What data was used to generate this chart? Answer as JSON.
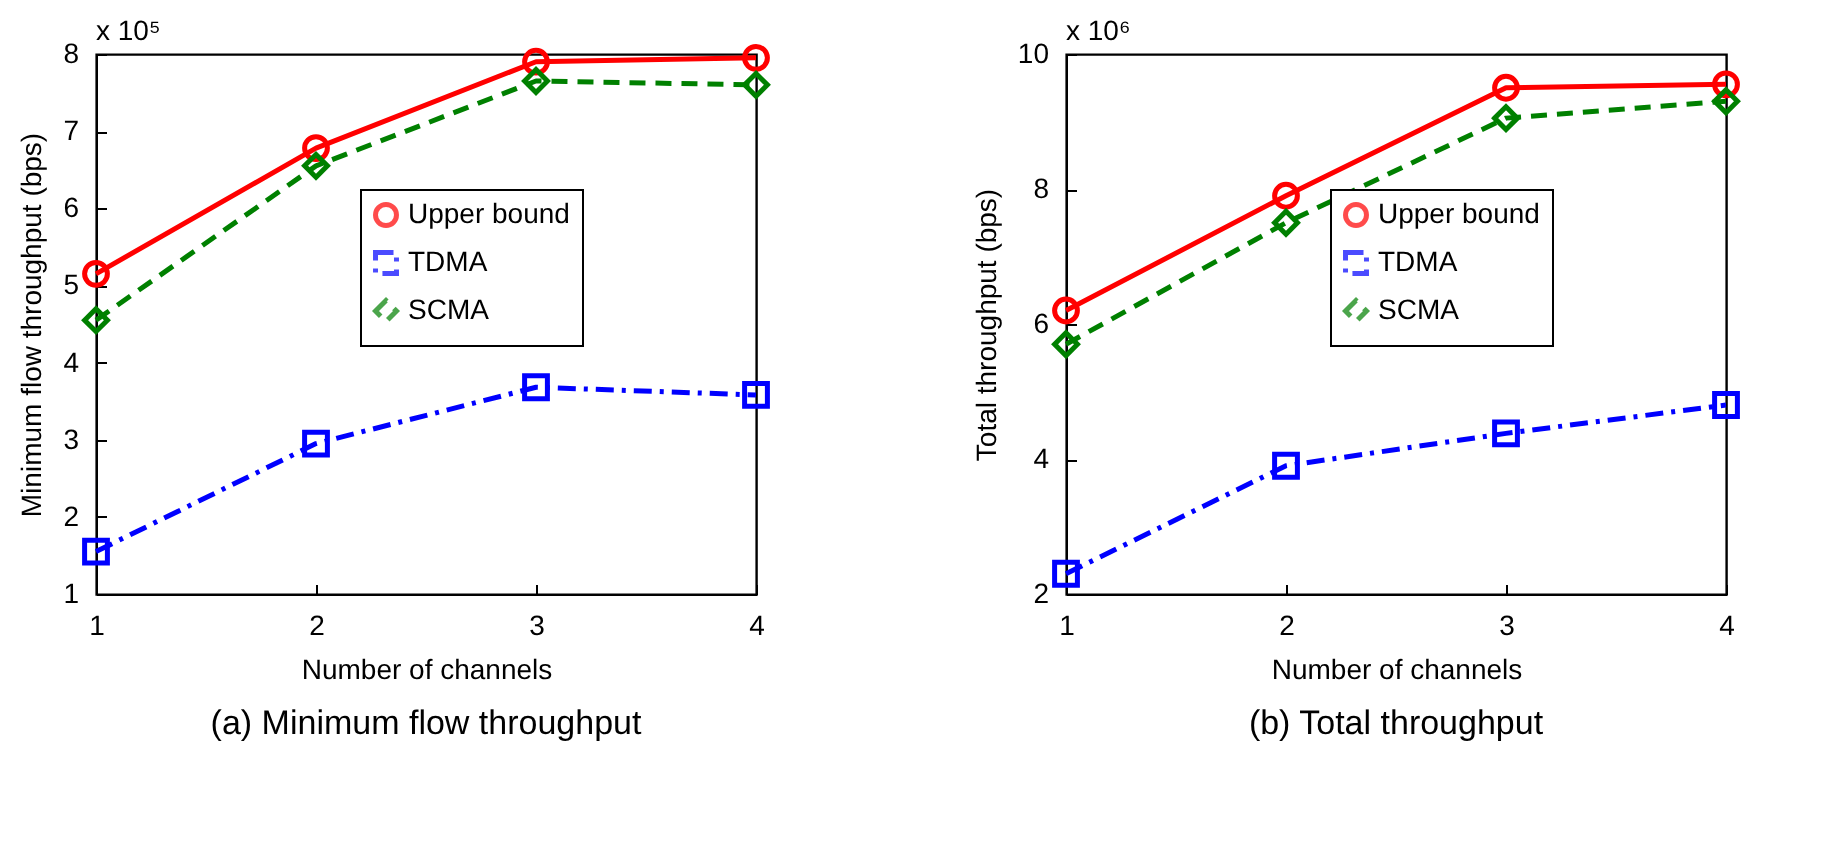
{
  "chart_data": [
    {
      "type": "line",
      "title": "(a) Minimum flow throughput",
      "xlabel": "Number of channels",
      "ylabel": "Minimum flow throughput (bps)",
      "annotations": [
        "x 10⁵"
      ],
      "x": [
        1,
        2,
        3,
        4
      ],
      "xlim": [
        1,
        4
      ],
      "xticks": [
        1,
        2,
        3,
        4
      ],
      "ylim": [
        1,
        8
      ],
      "yticks": [
        1,
        2,
        3,
        4,
        5,
        6,
        7,
        8
      ],
      "grid": false,
      "legend": "right",
      "series": [
        {
          "name": "Upper bound",
          "color": "#ff0000",
          "marker": "circle",
          "line_style": "solid",
          "values": [
            5.15,
            6.78,
            7.9,
            7.95
          ]
        },
        {
          "name": "TDMA",
          "color": "#0000ff",
          "marker": "square",
          "line_style": "dashdot",
          "values": [
            1.55,
            2.95,
            3.68,
            3.58
          ]
        },
        {
          "name": "SCMA",
          "color": "#008000",
          "marker": "diamond",
          "line_style": "dashed",
          "values": [
            4.55,
            6.55,
            7.65,
            7.6
          ]
        }
      ]
    },
    {
      "type": "line",
      "title": "(b) Total throughput",
      "xlabel": "Number of channels",
      "ylabel": "Total throughput (bps)",
      "annotations": [
        "x 10⁶"
      ],
      "x": [
        1,
        2,
        3,
        4
      ],
      "xlim": [
        1,
        4
      ],
      "xticks": [
        1,
        2,
        3,
        4
      ],
      "ylim": [
        2,
        10
      ],
      "yticks": [
        2,
        4,
        6,
        8,
        10
      ],
      "grid": false,
      "legend": "right",
      "series": [
        {
          "name": "Upper bound",
          "color": "#ff0000",
          "marker": "circle",
          "line_style": "solid",
          "values": [
            6.2,
            7.9,
            9.5,
            9.55
          ]
        },
        {
          "name": "TDMA",
          "color": "#0000ff",
          "marker": "square",
          "line_style": "dashdot",
          "values": [
            2.3,
            3.9,
            4.38,
            4.8
          ]
        },
        {
          "name": "SCMA",
          "color": "#008000",
          "marker": "diamond",
          "line_style": "dashed",
          "values": [
            5.7,
            7.5,
            9.05,
            9.3
          ]
        }
      ]
    }
  ]
}
